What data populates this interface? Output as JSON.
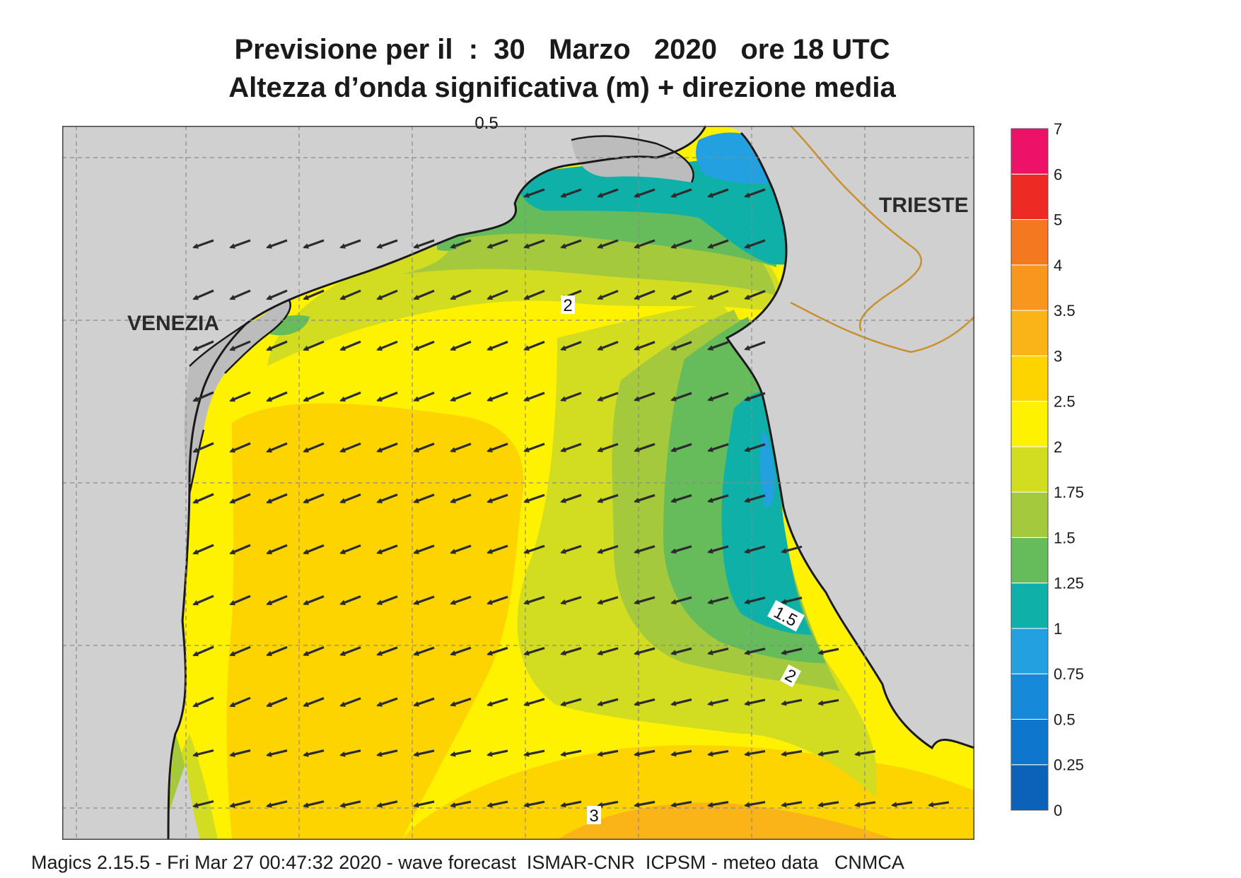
{
  "header": {
    "title": "Previsione per il  :  30   Marzo   2020   ore 18 UTC",
    "subtitle": "Altezza d’onda significativa (m) + direzione media"
  },
  "map": {
    "place_labels": [
      "VENEZIA",
      "TRIESTE"
    ],
    "contour_labels": [
      "2",
      "1.5",
      "2",
      "3",
      "0.5"
    ],
    "colors": {
      "land": "#d0d0d0",
      "coastline": "#1a1a1a",
      "border": "#c8902e",
      "grid": "#8a8a8a",
      "arrow": "#2b2b2b"
    },
    "wave_direction": "toward south-west / west"
  },
  "legend": {
    "ticks": [
      "0",
      "0.25",
      "0.5",
      "0.75",
      "1",
      "1.25",
      "1.5",
      "1.75",
      "2",
      "2.5",
      "3",
      "3.5",
      "4",
      "5",
      "6",
      "7"
    ],
    "colors": [
      "#0b62b8",
      "#0e76cc",
      "#1689d8",
      "#22a0e0",
      "#0fb0a8",
      "#66bb5a",
      "#a5c93c",
      "#d2dd22",
      "#fff200",
      "#fdd400",
      "#fbb418",
      "#f8961e",
      "#f37820",
      "#ee2a24",
      "#ed1268"
    ]
  },
  "footer": {
    "text": "Magics 2.15.5 - Fri Mar 27 00:47:32 2020 - wave forecast  ISMAR-CNR  ICPSM - meteo data   CNMCA"
  }
}
